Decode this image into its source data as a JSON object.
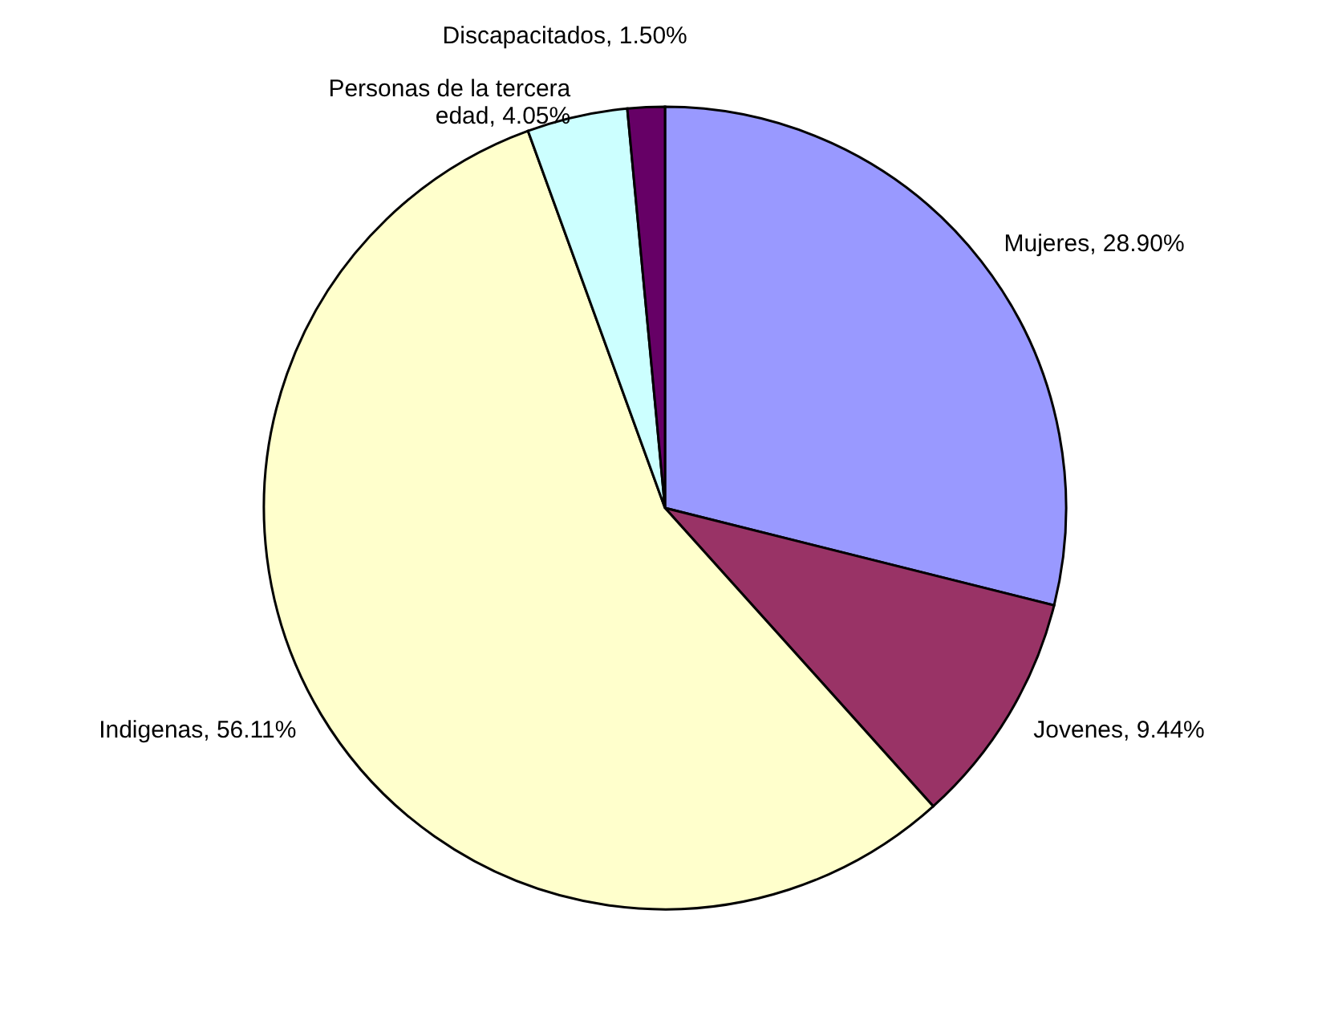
{
  "chart_data": {
    "type": "pie",
    "categories": [
      "Mujeres",
      "Jovenes",
      "Indigenas",
      "Personas de la tercera edad",
      "Discapacitados"
    ],
    "values": [
      28.9,
      9.44,
      56.11,
      4.05,
      1.5
    ],
    "colors": [
      "#9999ff",
      "#993366",
      "#ffffcc",
      "#ccffff",
      "#660066"
    ],
    "value_labels": [
      "28.90%",
      "9.44%",
      "56.11%",
      "4.05%",
      "1.50%"
    ],
    "legend": false
  }
}
